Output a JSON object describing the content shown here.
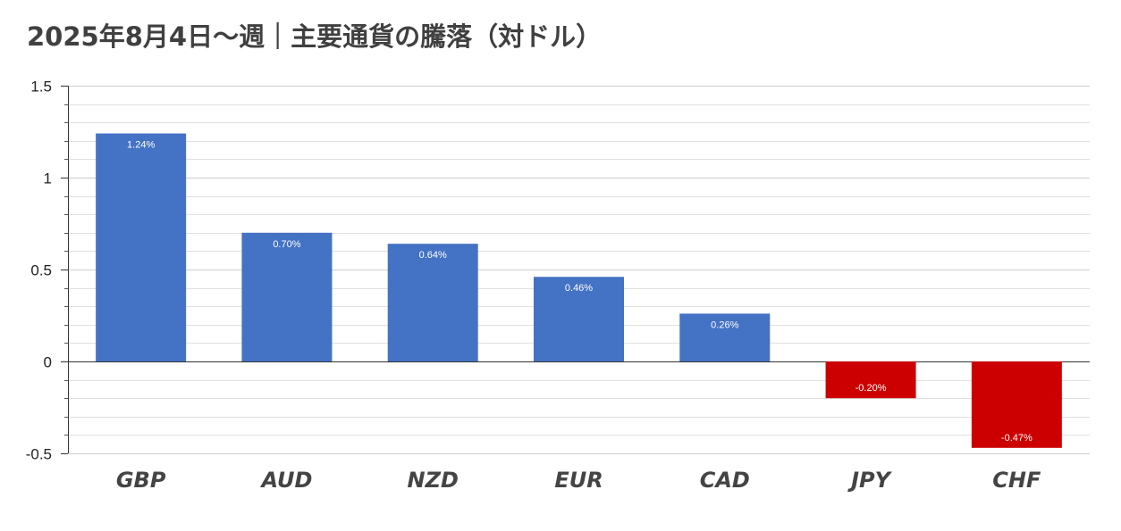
{
  "chart_data": {
    "type": "bar",
    "title": "2025年8月4日～週｜主要通貨の騰落（対ドル）",
    "categories": [
      "GBP",
      "AUD",
      "NZD",
      "EUR",
      "CAD",
      "JPY",
      "CHF"
    ],
    "values": [
      1.24,
      0.7,
      0.64,
      0.46,
      0.26,
      -0.2,
      -0.47
    ],
    "data_labels": [
      "1.24%",
      "0.70%",
      "0.64%",
      "0.46%",
      "0.26%",
      "-0.20%",
      "-0.47%"
    ],
    "yticks": [
      "-0.5",
      "0",
      "0.5",
      "1",
      "1.5"
    ],
    "ylim": [
      -0.5,
      1.5
    ],
    "xlabel": "",
    "ylabel": "",
    "grid": true,
    "legend": "none",
    "colors": {
      "positive": "#4472c4",
      "negative": "#cc0000",
      "gridline": "#e0e0e0",
      "axis": "#333333"
    }
  }
}
